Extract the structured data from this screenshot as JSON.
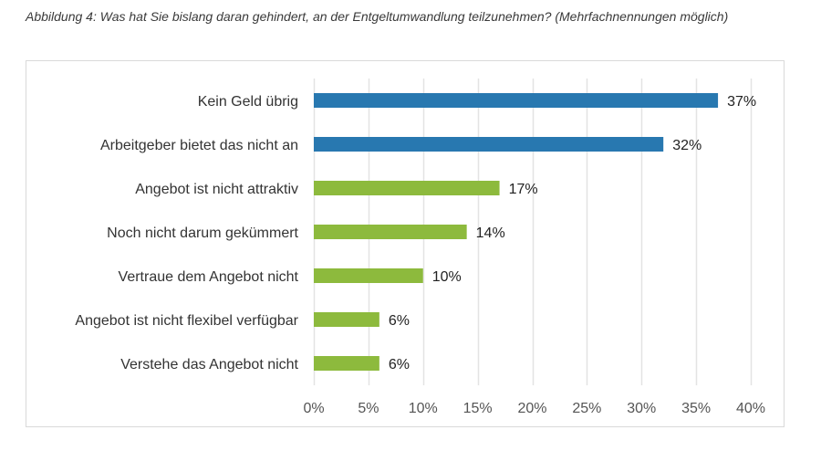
{
  "caption": "Abbildung 4: Was hat Sie bislang daran gehindert, an der Entgeltumwandlung teilzunehmen? (Mehrfachnennungen möglich)",
  "colors": {
    "blue": "#2878b0",
    "green": "#8dba3d",
    "grid": "#e3e3e3",
    "border": "#d9d9d9"
  },
  "chart_data": {
    "type": "bar",
    "orientation": "horizontal",
    "title": "Abbildung 4: Was hat Sie bislang daran gehindert, an der Entgeltumwandlung teilzunehmen? (Mehrfachnennungen möglich)",
    "xlabel": "",
    "ylabel": "",
    "categories": [
      "Kein Geld übrig",
      "Arbeitgeber bietet das nicht an",
      "Angebot ist nicht attraktiv",
      "Noch nicht darum gekümmert",
      "Vertraue dem Angebot nicht",
      "Angebot ist nicht flexibel verfügbar",
      "Verstehe das Angebot nicht"
    ],
    "values": [
      37,
      32,
      17,
      14,
      10,
      6,
      6
    ],
    "value_labels": [
      "37%",
      "32%",
      "17%",
      "14%",
      "10%",
      "6%",
      "6%"
    ],
    "bar_colors": [
      "blue",
      "blue",
      "green",
      "green",
      "green",
      "green",
      "green"
    ],
    "xlim": [
      0,
      40
    ],
    "xticks": [
      0,
      5,
      10,
      15,
      20,
      25,
      30,
      35,
      40
    ],
    "xtick_labels": [
      "0%",
      "5%",
      "10%",
      "15%",
      "20%",
      "25%",
      "30%",
      "35%",
      "40%"
    ],
    "grid": "vertical",
    "legend": "none"
  }
}
